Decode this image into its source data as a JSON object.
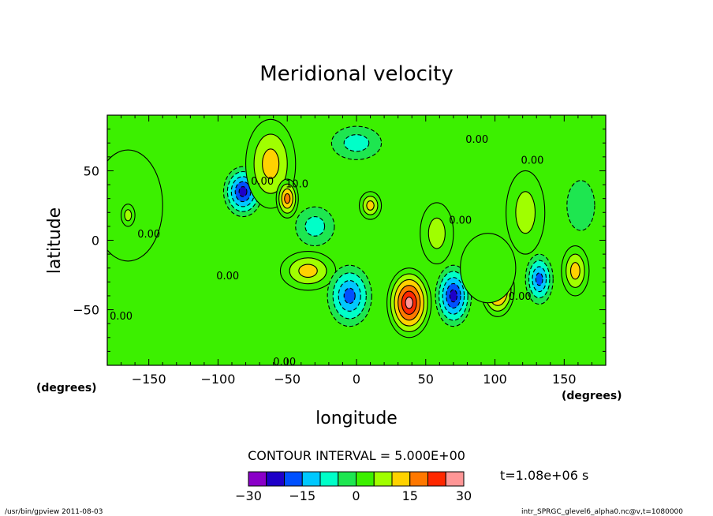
{
  "chart_data": {
    "type": "heatmap",
    "title": "Meridional velocity",
    "xlabel": "longitude",
    "ylabel": "latitude",
    "x_unit_left": "(degrees)",
    "x_unit_right": "(degrees)",
    "xlim": [
      -180,
      180
    ],
    "ylim": [
      -90,
      90
    ],
    "x_ticks": [
      -150,
      -100,
      -50,
      0,
      50,
      100,
      150
    ],
    "x_tick_labels": [
      "−150",
      "−100",
      "−50",
      "0",
      "50",
      "100",
      "150"
    ],
    "y_ticks": [
      50,
      0,
      -50
    ],
    "y_tick_labels": [
      "50",
      "0",
      "−50"
    ],
    "contour_interval_text": "CONTOUR INTERVAL = 5.000E+00",
    "time_text": "t=1.08e+06 s",
    "colorbar": {
      "levels": [
        -30,
        -25,
        -20,
        -15,
        -10,
        -5,
        0,
        5,
        10,
        15,
        20,
        25,
        30
      ],
      "tick_labels": [
        "−30",
        "−15",
        "0",
        "15",
        "30"
      ],
      "tick_values": [
        -30,
        -15,
        0,
        15,
        30
      ],
      "colors": [
        "#8a00c8",
        "#1e00c8",
        "#0050ff",
        "#00c8ff",
        "#00ffc8",
        "#1ee650",
        "#3cf000",
        "#a0ff00",
        "#ffd200",
        "#ff7800",
        "#ff2800",
        "#ff9696"
      ]
    },
    "contour_labels": [
      {
        "text": "0.00",
        "x": 55,
        "y": 90
      },
      {
        "text": "0.00",
        "x": 87,
        "y": 70
      },
      {
        "text": "0.00",
        "x": 127,
        "y": 55
      },
      {
        "text": "10.0",
        "x": -43,
        "y": 38
      },
      {
        "text": "0.00",
        "x": -68,
        "y": 40
      },
      {
        "text": "0.00",
        "x": -150,
        "y": 2
      },
      {
        "text": "0.00",
        "x": -93,
        "y": -28
      },
      {
        "text": "0.00",
        "x": -170,
        "y": -57
      },
      {
        "text": "0.00",
        "x": 75,
        "y": 12
      },
      {
        "text": "0.00",
        "x": 118,
        "y": -43
      },
      {
        "text": "0.00",
        "x": -52,
        "y": -90
      }
    ],
    "features": [
      {
        "lon": -82,
        "lat": 35,
        "value": -25,
        "rx": 14,
        "ry": 18
      },
      {
        "lon": -62,
        "lat": 55,
        "value": 15,
        "rx": 18,
        "ry": 32
      },
      {
        "lon": -50,
        "lat": 30,
        "value": 20,
        "rx": 8,
        "ry": 14
      },
      {
        "lon": 0,
        "lat": 70,
        "value": -10,
        "rx": 18,
        "ry": 12
      },
      {
        "lon": -30,
        "lat": 10,
        "value": -8,
        "rx": 14,
        "ry": 14
      },
      {
        "lon": 10,
        "lat": 25,
        "value": 13,
        "rx": 8,
        "ry": 10
      },
      {
        "lon": -35,
        "lat": -22,
        "value": 14,
        "rx": 20,
        "ry": 14
      },
      {
        "lon": -5,
        "lat": -40,
        "value": -18,
        "rx": 16,
        "ry": 22
      },
      {
        "lon": 38,
        "lat": -45,
        "value": 26,
        "rx": 16,
        "ry": 25
      },
      {
        "lon": 70,
        "lat": -40,
        "value": -23,
        "rx": 13,
        "ry": 22
      },
      {
        "lon": 102,
        "lat": -35,
        "value": 23,
        "rx": 12,
        "ry": 20
      },
      {
        "lon": 132,
        "lat": -28,
        "value": -20,
        "rx": 10,
        "ry": 18
      },
      {
        "lon": 158,
        "lat": -22,
        "value": 12,
        "rx": 10,
        "ry": 18
      },
      {
        "lon": 58,
        "lat": 5,
        "value": 7,
        "rx": 12,
        "ry": 22
      },
      {
        "lon": 95,
        "lat": -20,
        "value": 5,
        "rx": 20,
        "ry": 25
      },
      {
        "lon": 122,
        "lat": 20,
        "value": 7,
        "rx": 14,
        "ry": 30
      },
      {
        "lon": 162,
        "lat": 25,
        "value": -5,
        "rx": 10,
        "ry": 18
      },
      {
        "lon": -165,
        "lat": 25,
        "value": 3,
        "rx": 25,
        "ry": 40
      },
      {
        "lon": -165,
        "lat": 18,
        "value": 8,
        "rx": 5,
        "ry": 8
      }
    ]
  },
  "footer": {
    "left": "/usr/bin/gpview  2011-08-03",
    "right": "intr_SPRGC_glevel6_alpha0.nc@v,t=1080000"
  }
}
